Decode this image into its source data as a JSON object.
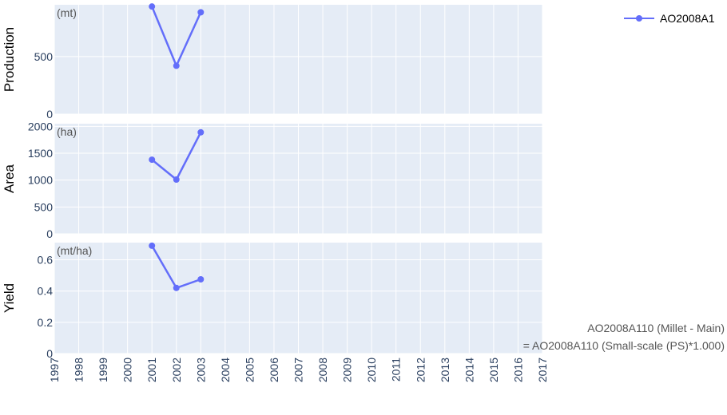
{
  "chart_data": {
    "type": "line",
    "x_range": [
      1997,
      2017
    ],
    "x_ticks": [
      "1997",
      "1998",
      "1999",
      "2000",
      "2001",
      "2002",
      "2003",
      "2004",
      "2005",
      "2006",
      "2007",
      "2008",
      "2009",
      "2010",
      "2011",
      "2012",
      "2013",
      "2014",
      "2015",
      "2016",
      "2017"
    ],
    "legend": {
      "name": "AO2008A1",
      "position": "top-right"
    },
    "line_color": "#636efa",
    "panels": [
      {
        "ylabel": "Production",
        "unit": "(mt)",
        "ylim": [
          0,
          950
        ],
        "yticks": [
          "0",
          "500"
        ],
        "ytick_values": [
          0,
          500
        ],
        "x": [
          2001,
          2002,
          2003
        ],
        "y": [
          935,
          420,
          885
        ]
      },
      {
        "ylabel": "Area",
        "unit": "(ha)",
        "ylim": [
          0,
          2050
        ],
        "yticks": [
          "0",
          "500",
          "1000",
          "1500",
          "2000"
        ],
        "ytick_values": [
          0,
          500,
          1000,
          1500,
          2000
        ],
        "x": [
          2001,
          2002,
          2003
        ],
        "y": [
          1380,
          1010,
          1890
        ]
      },
      {
        "ylabel": "Yield",
        "unit": "(mt/ha)",
        "ylim": [
          0,
          0.71
        ],
        "yticks": [
          "0",
          "0.2",
          "0.4",
          "0.6"
        ],
        "ytick_values": [
          0,
          0.2,
          0.4,
          0.6
        ],
        "x": [
          2001,
          2002,
          2003
        ],
        "y": [
          0.69,
          0.42,
          0.475
        ]
      }
    ]
  },
  "annotation": {
    "line1": "AO2008A110 (Millet - Main)",
    "line2": "= AO2008A110 (Small-scale (PS)*1.000)"
  }
}
